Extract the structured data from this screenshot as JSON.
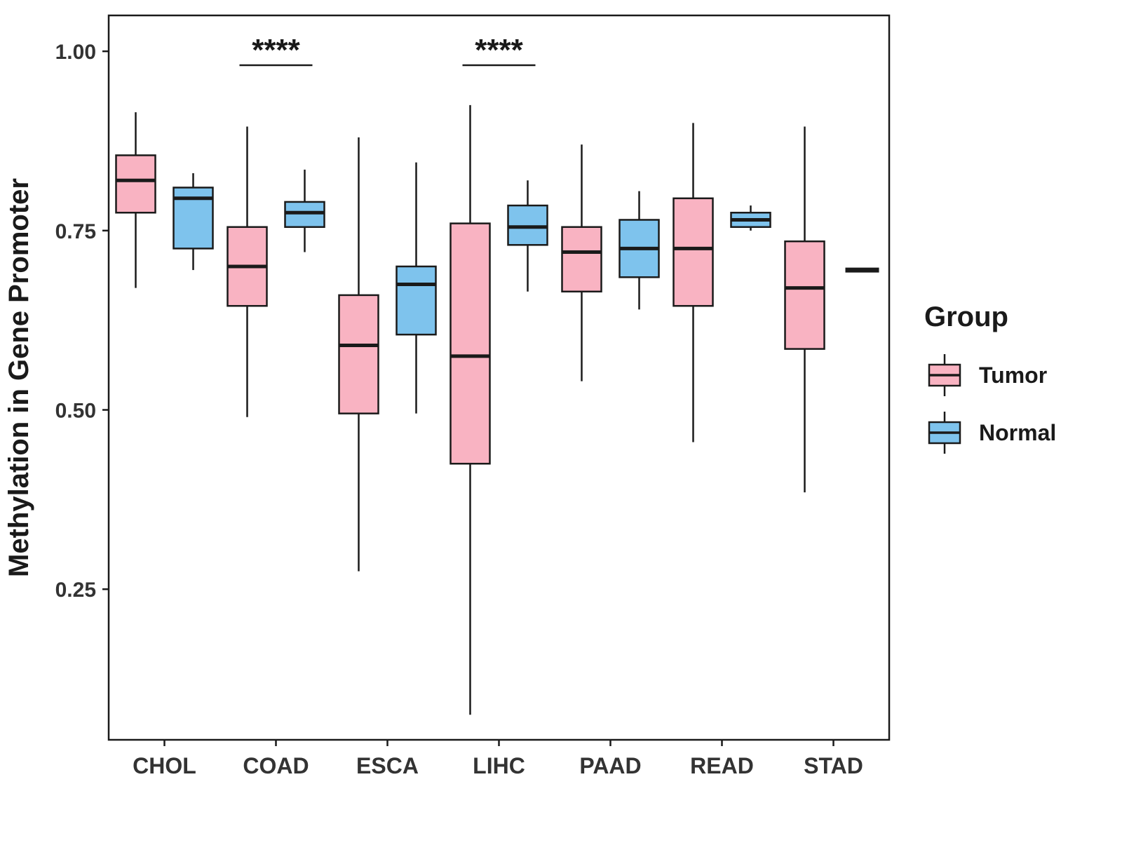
{
  "chart_data": {
    "type": "boxplot",
    "title": "",
    "xlabel": "",
    "ylabel": "Methylation in Gene Promoter",
    "ylim": [
      0.04,
      1.05
    ],
    "yticks": [
      0.25,
      0.5,
      0.75,
      1.0
    ],
    "ytick_labels": [
      "0.25",
      "0.50",
      "0.75",
      "1.00"
    ],
    "categories": [
      "CHOL",
      "COAD",
      "ESCA",
      "LIHC",
      "PAAD",
      "READ",
      "STAD"
    ],
    "grid": false,
    "legend_position": "right",
    "groups": [
      {
        "name": "Tumor",
        "color": "#F9B3C2"
      },
      {
        "name": "Normal",
        "color": "#7EC3ED"
      }
    ],
    "series": [
      {
        "name": "Tumor",
        "stats": [
          {
            "category": "CHOL",
            "min": 0.67,
            "q1": 0.775,
            "median": 0.82,
            "q3": 0.855,
            "max": 0.915
          },
          {
            "category": "COAD",
            "min": 0.49,
            "q1": 0.645,
            "median": 0.7,
            "q3": 0.755,
            "max": 0.895
          },
          {
            "category": "ESCA",
            "min": 0.275,
            "q1": 0.495,
            "median": 0.59,
            "q3": 0.66,
            "max": 0.88
          },
          {
            "category": "LIHC",
            "min": 0.075,
            "q1": 0.425,
            "median": 0.575,
            "q3": 0.76,
            "max": 0.925
          },
          {
            "category": "PAAD",
            "min": 0.54,
            "q1": 0.665,
            "median": 0.72,
            "q3": 0.755,
            "max": 0.87
          },
          {
            "category": "READ",
            "min": 0.455,
            "q1": 0.645,
            "median": 0.725,
            "q3": 0.795,
            "max": 0.9
          },
          {
            "category": "STAD",
            "min": 0.385,
            "q1": 0.585,
            "median": 0.67,
            "q3": 0.735,
            "max": 0.895
          }
        ]
      },
      {
        "name": "Normal",
        "stats": [
          {
            "category": "CHOL",
            "min": 0.695,
            "q1": 0.725,
            "median": 0.795,
            "q3": 0.81,
            "max": 0.83
          },
          {
            "category": "COAD",
            "min": 0.72,
            "q1": 0.755,
            "median": 0.775,
            "q3": 0.79,
            "max": 0.835
          },
          {
            "category": "ESCA",
            "min": 0.495,
            "q1": 0.605,
            "median": 0.675,
            "q3": 0.7,
            "max": 0.845
          },
          {
            "category": "LIHC",
            "min": 0.665,
            "q1": 0.73,
            "median": 0.755,
            "q3": 0.785,
            "max": 0.82
          },
          {
            "category": "PAAD",
            "min": 0.64,
            "q1": 0.685,
            "median": 0.725,
            "q3": 0.765,
            "max": 0.805
          },
          {
            "category": "READ",
            "min": 0.75,
            "q1": 0.755,
            "median": 0.765,
            "q3": 0.775,
            "max": 0.785
          },
          {
            "category": "STAD",
            "min": 0.695,
            "q1": 0.695,
            "median": 0.695,
            "q3": 0.695,
            "max": 0.695
          }
        ]
      }
    ],
    "significance": [
      {
        "category": "COAD",
        "label": "****"
      },
      {
        "category": "LIHC",
        "label": "****"
      }
    ]
  },
  "legend": {
    "title": "Group",
    "items": [
      {
        "label": "Tumor"
      },
      {
        "label": "Normal"
      }
    ]
  },
  "style": {
    "stroke_color": "#1a1a1a",
    "background": "#ffffff"
  }
}
